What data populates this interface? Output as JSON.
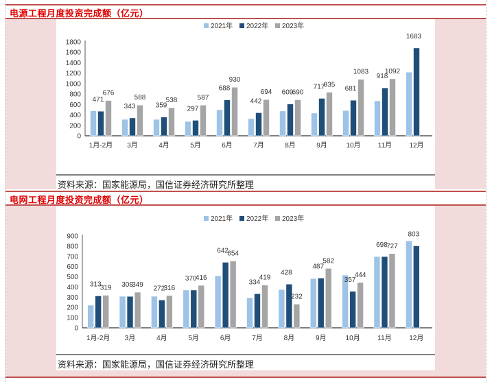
{
  "colors": {
    "series_2021": "#9dc3e6",
    "series_2022": "#1f4e79",
    "series_2023": "#a5a5a5",
    "title_red": "#e00000",
    "frame_red": "#c0504d",
    "panel_pink": "#f2dcdb"
  },
  "chart_data": [
    {
      "type": "bar",
      "title": "电源工程月度投资完成额（亿元）",
      "categories": [
        "1月-2月",
        "3月",
        "4月",
        "5月",
        "6月",
        "7月",
        "8月",
        "9月",
        "10月",
        "11月",
        "12月"
      ],
      "series": [
        {
          "name": "2021年",
          "values": [
            480,
            315,
            315,
            276,
            500,
            330,
            475,
            435,
            485,
            670,
            1220
          ],
          "labeled": false
        },
        {
          "name": "2022年",
          "values": [
            471,
            343,
            359,
            297,
            688,
            442,
            609,
            717,
            681,
            918,
            1683
          ],
          "labeled": true
        },
        {
          "name": "2023年",
          "values": [
            676,
            588,
            538,
            587,
            930,
            694,
            690,
            835,
            1083,
            1092,
            null
          ],
          "labeled": true
        }
      ],
      "yticks": [
        0,
        200,
        400,
        600,
        800,
        1000,
        1200,
        1400,
        1600,
        1800
      ],
      "ylim": [
        0,
        1800
      ],
      "xlabel": "",
      "ylabel": "",
      "legend": "top-center",
      "grid": false,
      "source": "资料来源：国家能源局，国信证券经济研究所整理"
    },
    {
      "type": "bar",
      "title": "电网工程月度投资完成额（亿元）",
      "categories": [
        "1月-2月",
        "3月",
        "4月",
        "5月",
        "6月",
        "7月",
        "8月",
        "9月",
        "10月",
        "11月",
        "12月"
      ],
      "series": [
        {
          "name": "2021年",
          "values": [
            222,
            309,
            309,
            370,
            510,
            295,
            375,
            483,
            517,
            698,
            852
          ],
          "labeled": false
        },
        {
          "name": "2022年",
          "values": [
            313,
            308,
            272,
            370,
            642,
            334,
            428,
            487,
            357,
            698,
            803
          ],
          "labeled": true
        },
        {
          "name": "2023年",
          "values": [
            319,
            349,
            316,
            416,
            654,
            419,
            232,
            582,
            444,
            727,
            null
          ],
          "labeled": true
        }
      ],
      "yticks": [
        0,
        100,
        200,
        300,
        400,
        500,
        600,
        700,
        800,
        900
      ],
      "ylim": [
        0,
        900
      ],
      "xlabel": "",
      "ylabel": "",
      "legend": "top-center",
      "grid": false,
      "source": "资料来源：国家能源局，国信证券经济研究所整理"
    }
  ]
}
